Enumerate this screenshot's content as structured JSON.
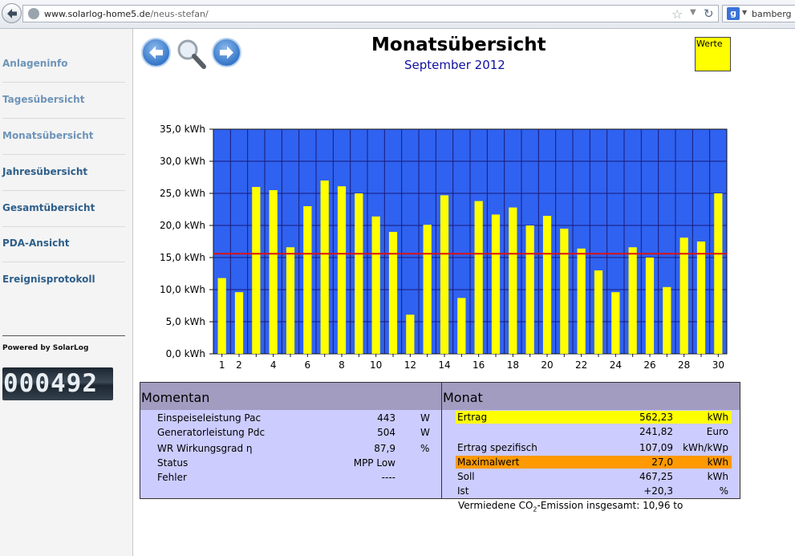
{
  "browser": {
    "url_host": "www.solarlog-home5.de",
    "url_path": "/neus-stefan/",
    "search_text": "bamberg pc"
  },
  "sidebar": {
    "items": [
      {
        "label": "Anlageninfo",
        "style": "light"
      },
      {
        "label": "Tagesübersicht",
        "style": "light"
      },
      {
        "label": "Monatsübersicht",
        "style": "light"
      },
      {
        "label": "Jahresübersicht",
        "style": "dark"
      },
      {
        "label": "Gesamtübersicht",
        "style": "dark"
      },
      {
        "label": "PDA-Ansicht",
        "style": "dark"
      },
      {
        "label": "Ereignisprotokoll",
        "style": "dark"
      }
    ],
    "powered_by": "Powered by SolarLog",
    "counter": "000492"
  },
  "header": {
    "title": "Monatsübersicht",
    "subtitle": "September 2012",
    "werte_label": "Werte"
  },
  "chart_data": {
    "type": "bar",
    "categories": [
      1,
      2,
      3,
      4,
      5,
      6,
      7,
      8,
      9,
      10,
      11,
      12,
      13,
      14,
      15,
      16,
      17,
      18,
      19,
      20,
      21,
      22,
      23,
      24,
      25,
      26,
      27,
      28,
      29,
      30
    ],
    "x_tick_labels": [
      "1",
      "2",
      "4",
      "6",
      "8",
      "10",
      "12",
      "14",
      "16",
      "18",
      "20",
      "22",
      "24",
      "26",
      "28",
      "30"
    ],
    "values": [
      11.8,
      9.6,
      26.0,
      25.5,
      16.6,
      23.0,
      27.0,
      26.1,
      25.0,
      21.4,
      19.0,
      6.1,
      20.1,
      24.7,
      8.7,
      23.8,
      21.7,
      22.8,
      20.0,
      21.5,
      19.5,
      16.4,
      13.0,
      9.6,
      16.6,
      15.0,
      10.4,
      18.1,
      17.5,
      25.0
    ],
    "ylim": [
      0,
      35
    ],
    "y_tick_labels": [
      "0,0 kWh",
      "5,0 kWh",
      "10,0 kWh",
      "15,0 kWh",
      "20,0 kWh",
      "25,0 kWh",
      "30,0 kWh",
      "35,0 kWh"
    ],
    "target_line": 15.6,
    "grid": true,
    "colors": {
      "background": "#2f62f0",
      "bar": "#ffff00",
      "grid": "#1a1a7a",
      "target": "#dd1111"
    }
  },
  "momentan": {
    "title": "Momentan",
    "rows": [
      {
        "label": "Einspeiseleistung Pac",
        "value": "443",
        "unit": "W"
      },
      {
        "label": "Generatorleistung Pdc",
        "value": "504",
        "unit": "W"
      },
      {
        "label": "WR Wirkungsgrad η",
        "value": "87,9",
        "unit": "%"
      },
      {
        "label": "Status",
        "value": "MPP Low",
        "unit": ""
      },
      {
        "label": "Fehler",
        "value": "----",
        "unit": ""
      }
    ]
  },
  "monat": {
    "title": "Monat",
    "rows": [
      {
        "label": "Ertrag",
        "value": "562,23",
        "unit": "kWh",
        "highlight": "yellow"
      },
      {
        "label": "",
        "value": "241,82",
        "unit": "Euro",
        "highlight": ""
      },
      {
        "label": "Ertrag spezifisch",
        "value": "107,09",
        "unit": "kWh/kWp",
        "highlight": ""
      },
      {
        "label": "Maximalwert",
        "value": "27,0",
        "unit": "kWh",
        "highlight": "orange"
      },
      {
        "label": "Soll",
        "value": "467,25",
        "unit": "kWh",
        "highlight": ""
      },
      {
        "label": "Ist",
        "value": "+20,3",
        "unit": "%",
        "highlight": ""
      }
    ]
  },
  "co2": {
    "prefix": "Vermiedene CO",
    "sub": "2",
    "suffix": "-Emission insgesamt: 10,96 to"
  }
}
